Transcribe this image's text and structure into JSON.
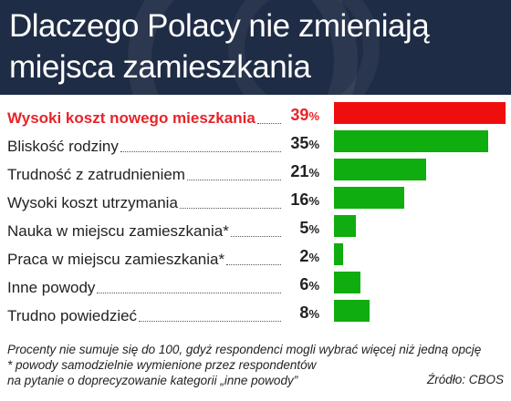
{
  "title_lines": [
    "Dlaczego Polacy nie zmieniają",
    "miejsca zamieszkania"
  ],
  "colors": {
    "header_bg": "#1f2c45",
    "highlight": "#e8232a",
    "bar_green": "#0fad0f",
    "bar_red": "#f00d0d"
  },
  "chart_data": {
    "type": "bar",
    "orientation": "horizontal",
    "title": "Dlaczego Polacy nie zmieniają miejsca zamieszkania",
    "unit": "%",
    "xlim": [
      0,
      39
    ],
    "categories": [
      "Wysoki koszt nowego mieszkania",
      "Bliskość rodziny",
      "Trudność z zatrudnieniem",
      "Wysoki koszt utrzymania",
      "Nauka w miejscu zamieszkania*",
      "Praca w miejscu zamieszkania*",
      "Inne powody",
      "Trudno powiedzieć"
    ],
    "values": [
      39,
      35,
      21,
      16,
      5,
      2,
      6,
      8
    ],
    "value_labels": [
      "39",
      "35",
      "21",
      "16",
      "5",
      "2",
      "6",
      "8"
    ],
    "highlighted_index": 0,
    "grid": false,
    "legend": "none"
  },
  "footnotes": [
    "Procenty nie sumuje się do 100, gdyż respondenci mogli wybrać więcej niż jedną opcję",
    "* powody samodzielnie wymienione przez respondentów",
    "na pytanie o doprecyzowanie kategorii „inne powody”"
  ],
  "source": "Źródło: CBOS"
}
